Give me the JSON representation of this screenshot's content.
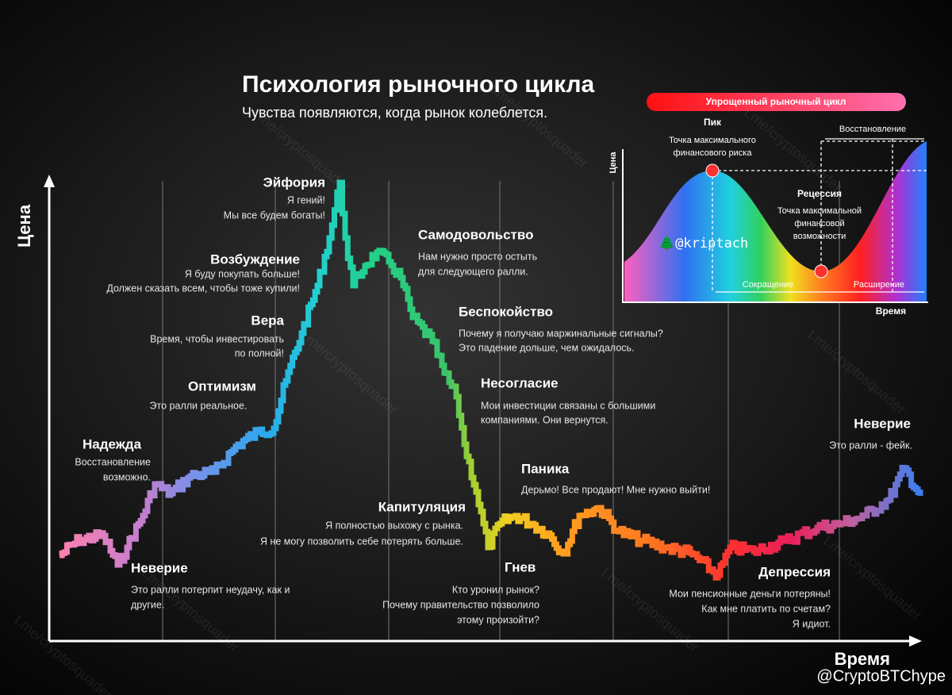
{
  "header": {
    "title": "Психология рыночного цикла",
    "subtitle": "Чувства появляются, когда рынок колеблется."
  },
  "axes": {
    "y": "Цена",
    "x": "Время"
  },
  "stages": [
    {
      "title": "Надежда",
      "lines": [
        "Восстановление",
        "возможно."
      ]
    },
    {
      "title": "Неверие",
      "lines": [
        "Это ралли потерпит неудачу, как и",
        "другие."
      ]
    },
    {
      "title": "Оптимизм",
      "lines": [
        "Это ралли реальное."
      ]
    },
    {
      "title": "Вера",
      "lines": [
        "Время, чтобы инвестировать",
        "по полной!"
      ]
    },
    {
      "title": "Возбуждение",
      "lines": [
        "Я буду покупать больше!",
        "Должен сказать всем, чтобы тоже купили!"
      ]
    },
    {
      "title": "Эйфория",
      "lines": [
        "Я гений!",
        "Мы все будем богаты!"
      ]
    },
    {
      "title": "Самодовольство",
      "lines": [
        "Нам нужно просто остыть",
        "для следующего ралли."
      ]
    },
    {
      "title": "Беспокойство",
      "lines": [
        "Почему я получаю маржинальные сигналы?",
        "Это падение дольше, чем ожидалось."
      ]
    },
    {
      "title": "Несогласие",
      "lines": [
        "Мои инвестиции связаны с большими",
        "компаниями. Они вернутся."
      ]
    },
    {
      "title": "Паника",
      "lines": [
        "Дерьмо! Все продают! Мне нужно выйти!"
      ]
    },
    {
      "title": "Капитуляция",
      "lines": [
        "Я полностью выхожу с рынка.",
        "Я не могу позволить себе потерять больше."
      ]
    },
    {
      "title": "Гнев",
      "lines": [
        "Кто уронил рынок?",
        "Почему правительство позволило",
        "этому произойти?"
      ]
    },
    {
      "title": "Депрессия",
      "lines": [
        "Мои пенсионные деньги потеряны!",
        "Как мне платить по счетам?",
        "Я идиот."
      ]
    },
    {
      "title": "Неверие",
      "lines": [
        "Это ралли - фейк."
      ]
    }
  ],
  "inset": {
    "title": "Упрощенный рыночный цикл",
    "y_label": "Цена",
    "x_label": "Время",
    "peak": {
      "title": "Пик",
      "lines": [
        "Точка максимального",
        "финансового риска"
      ]
    },
    "recession": {
      "title": "Рецессия",
      "lines": [
        "Точка максимальной",
        "финансовой",
        "возможности"
      ]
    },
    "recovery": "Восстановление",
    "contraction": "Сокращение",
    "expansion": "Расширение"
  },
  "watermarks": {
    "channel": "t.me/cryptosquader",
    "author": "🌲@kriptach",
    "credit": "@CryptoBTChype"
  }
}
